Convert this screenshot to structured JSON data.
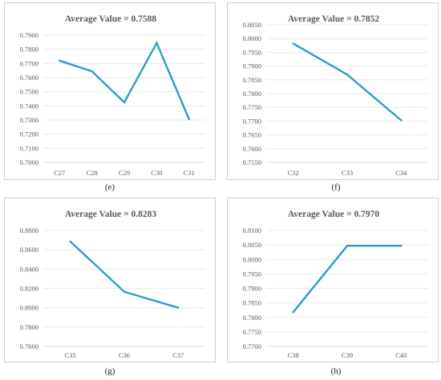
{
  "chart_data": [
    {
      "type": "line",
      "caption": "(e)",
      "title": "Average Value = 0.7588",
      "categories": [
        "C27",
        "C28",
        "C29",
        "C30",
        "C31"
      ],
      "values": [
        0.772,
        0.7645,
        0.7425,
        0.7845,
        0.7305
      ],
      "y_ticks": [
        "0.7000",
        "0.7100",
        "0.7200",
        "0.7300",
        "0.7400",
        "0.7500",
        "0.7600",
        "0.7700",
        "0.7800",
        "0.7900"
      ],
      "ylim": [
        0.7,
        0.79
      ],
      "grid": true,
      "color": "#2E9BCB"
    },
    {
      "type": "line",
      "caption": "(f)",
      "title": "Average Value = 0.7852",
      "categories": [
        "C32",
        "C33",
        "C34"
      ],
      "values": [
        0.7982,
        0.7869,
        0.7703
      ],
      "y_ticks": [
        "0.7550",
        "0.7600",
        "0.7650",
        "0.7700",
        "0.7750",
        "0.7800",
        "0.7850",
        "0.7900",
        "0.7950",
        "0.8000",
        "0.8050"
      ],
      "ylim": [
        0.755,
        0.805
      ],
      "grid": true,
      "color": "#2E9BCB"
    },
    {
      "type": "line",
      "caption": "(g)",
      "title": "Average Value = 0.8283",
      "categories": [
        "C35",
        "C36",
        "C37"
      ],
      "values": [
        0.8685,
        0.8165,
        0.8
      ],
      "y_ticks": [
        "0.7600",
        "0.7800",
        "0.8000",
        "0.8200",
        "0.8400",
        "0.8600",
        "0.8800"
      ],
      "ylim": [
        0.76,
        0.88
      ],
      "grid": true,
      "color": "#2E9BCB"
    },
    {
      "type": "line",
      "caption": "(h)",
      "title": "Average Value = 0.7970",
      "categories": [
        "C38",
        "C39",
        "C40"
      ],
      "values": [
        0.7818,
        0.8047,
        0.8047
      ],
      "y_ticks": [
        "0.7700",
        "0.7750",
        "0.7800",
        "0.7850",
        "0.7900",
        "0.7950",
        "0.8000",
        "0.8050",
        "0.8100"
      ],
      "ylim": [
        0.77,
        0.81
      ],
      "grid": true,
      "color": "#2E9BCB"
    }
  ]
}
